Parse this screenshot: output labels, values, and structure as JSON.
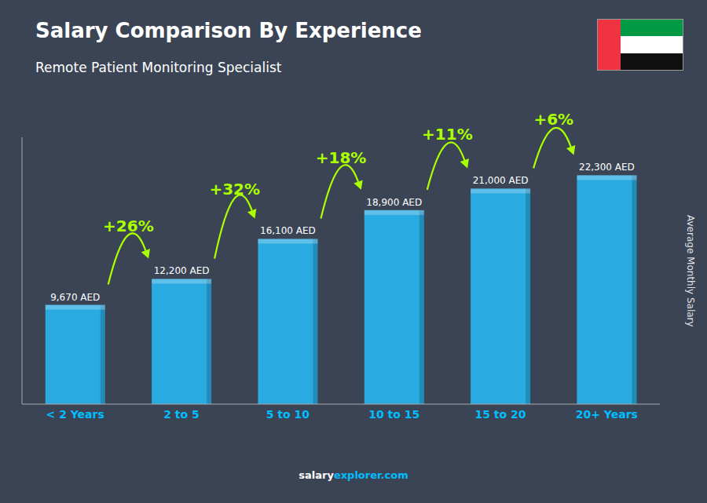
{
  "chart_data": {
    "type": "bar",
    "title": "Salary Comparison By Experience",
    "subtitle": "Remote Patient Monitoring Specialist",
    "ylabel": "Average Monthly Salary",
    "categories": [
      "< 2 Years",
      "2 to 5",
      "5 to 10",
      "10 to 15",
      "15 to 20",
      "20+ Years"
    ],
    "values": [
      9670,
      12200,
      16100,
      18900,
      21000,
      22300
    ],
    "value_labels": [
      "9,670 AED",
      "12,200 AED",
      "16,100 AED",
      "18,900 AED",
      "21,000 AED",
      "22,300 AED"
    ],
    "data_labels": true,
    "color": "#29ABE2",
    "ylim": [
      0,
      26000
    ],
    "tick_labels": "x",
    "grid": false,
    "annotations": [
      {
        "text": "+26%",
        "color": "#aaff00"
      },
      {
        "text": "+32%",
        "color": "#aaff00"
      },
      {
        "text": "+18%",
        "color": "#aaff00"
      },
      {
        "text": "+11%",
        "color": "#aaff00"
      },
      {
        "text": "+6%",
        "color": "#aaff00"
      }
    ],
    "footer": [
      {
        "text": "salary",
        "color": "#ffffff"
      },
      {
        "text": "explorer.com",
        "color": "#00BFFF"
      }
    ]
  }
}
